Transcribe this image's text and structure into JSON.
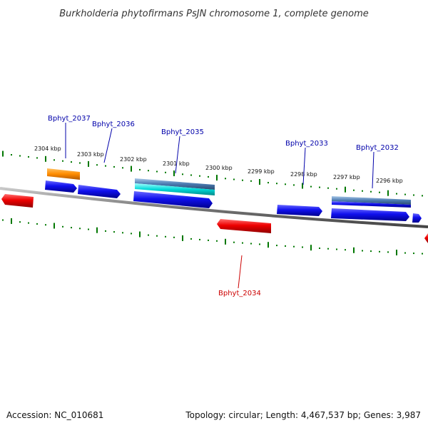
{
  "title": "Burkholderia phytofirmans PsJN chromosome 1, complete genome",
  "footer": {
    "accession": "Accession: NC_010681",
    "summary": "Topology: circular; Length: 4,467,537 bp; Genes: 3,987"
  },
  "ticks": [
    "2304 kbp",
    "2303 kbp",
    "2302 kbp",
    "2301 kbp",
    "2300 kbp",
    "2299 kbp",
    "2298 kbp",
    "2297 kbp",
    "2296 kbp"
  ],
  "genes": [
    {
      "name": "Bphyt_2037",
      "color": "#0000aa"
    },
    {
      "name": "Bphyt_2036",
      "color": "#0000aa"
    },
    {
      "name": "Bphyt_2035",
      "color": "#0000aa"
    },
    {
      "name": "Bphyt_2033",
      "color": "#0000aa"
    },
    {
      "name": "Bphyt_2032",
      "color": "#0000aa"
    },
    {
      "name": "Bphyt_2034",
      "color": "#cc0000"
    }
  ],
  "colors": {
    "forward": "#0000ee",
    "reverse": "#ee0000",
    "orange": "#ff8c00",
    "cyan": "#00d8d8",
    "steel": "#4a7ab0",
    "tick": "#007700",
    "backbone": "#777777"
  }
}
